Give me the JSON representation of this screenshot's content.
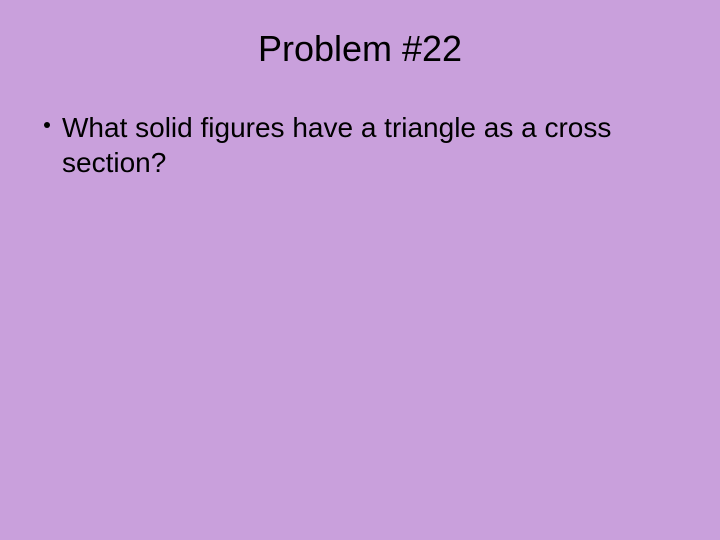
{
  "slide": {
    "background_color": "#c9a0dc",
    "text_color": "#000000",
    "title": {
      "text": "Problem #22",
      "fontsize": 36
    },
    "bullet": {
      "text": "What solid figures have a triangle as a cross section?",
      "fontsize": 28,
      "marker_color": "#000000"
    }
  }
}
